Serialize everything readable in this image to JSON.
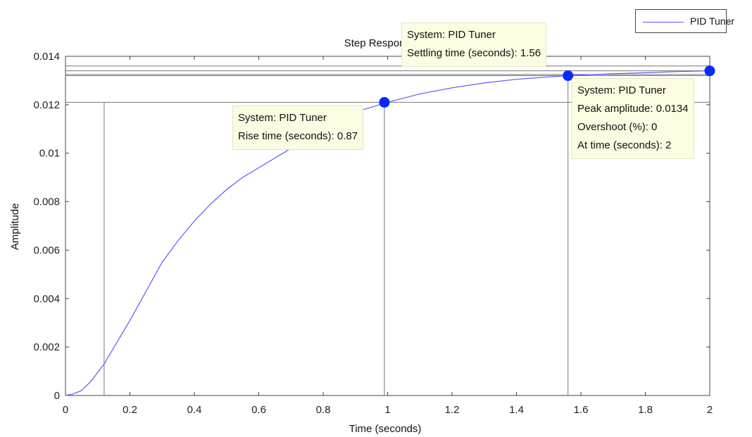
{
  "chart_data": {
    "type": "line",
    "title": "Step Response",
    "xlabel": "Time (seconds)",
    "ylabel": "Amplitude",
    "xlim": [
      0,
      2
    ],
    "ylim": [
      0,
      0.014
    ],
    "xticks": [
      "0",
      "0.2",
      "0.4",
      "0.6",
      "0.8",
      "1",
      "1.2",
      "1.4",
      "1.6",
      "1.8",
      "2"
    ],
    "yticks": [
      "0",
      "0.002",
      "0.004",
      "0.006",
      "0.008",
      "0.01",
      "0.012",
      "0.014"
    ],
    "grid": false,
    "legend": {
      "position": "top-right",
      "entries": [
        "PID Tuner"
      ]
    },
    "series": [
      {
        "name": "PID Tuner",
        "color": "#5a5aff",
        "x": [
          0,
          0.02,
          0.05,
          0.08,
          0.12,
          0.16,
          0.2,
          0.25,
          0.3,
          0.35,
          0.4,
          0.45,
          0.5,
          0.55,
          0.6,
          0.65,
          0.7,
          0.75,
          0.8,
          0.85,
          0.87,
          0.9,
          0.95,
          1.0,
          1.1,
          1.2,
          1.3,
          1.4,
          1.5,
          1.56,
          1.6,
          1.7,
          1.8,
          1.9,
          2.0
        ],
        "y": [
          0,
          5e-05,
          0.0002,
          0.0006,
          0.0013,
          0.0022,
          0.0031,
          0.0043,
          0.0055,
          0.0064,
          0.0072,
          0.0079,
          0.0085,
          0.009,
          0.0094,
          0.0098,
          0.0102,
          0.0106,
          0.011,
          0.0114,
          0.01155,
          0.0117,
          0.0119,
          0.0121,
          0.01245,
          0.0127,
          0.0129,
          0.01305,
          0.01315,
          0.0132,
          0.01323,
          0.01328,
          0.01332,
          0.01337,
          0.0134
        ]
      }
    ],
    "markers": [
      {
        "x": 0.99,
        "y": 0.0121
      },
      {
        "x": 1.56,
        "y": 0.0132
      },
      {
        "x": 2.0,
        "y": 0.0134
      }
    ],
    "reference_lines": {
      "vertical_x": [
        0.12,
        0.99,
        1.56
      ],
      "horizontal_y": [
        0.0121,
        0.0132,
        0.01325,
        0.0134,
        0.0136
      ]
    },
    "annotations": [
      {
        "lines": [
          "System: PID Tuner",
          "Rise time (seconds): 0.87"
        ]
      },
      {
        "lines": [
          "System: PID Tuner",
          "Settling time (seconds): 1.56"
        ]
      },
      {
        "lines": [
          "System: PID Tuner",
          "Peak amplitude: 0.0134",
          "Overshoot (%): 0",
          "At time (seconds): 2"
        ]
      }
    ]
  }
}
